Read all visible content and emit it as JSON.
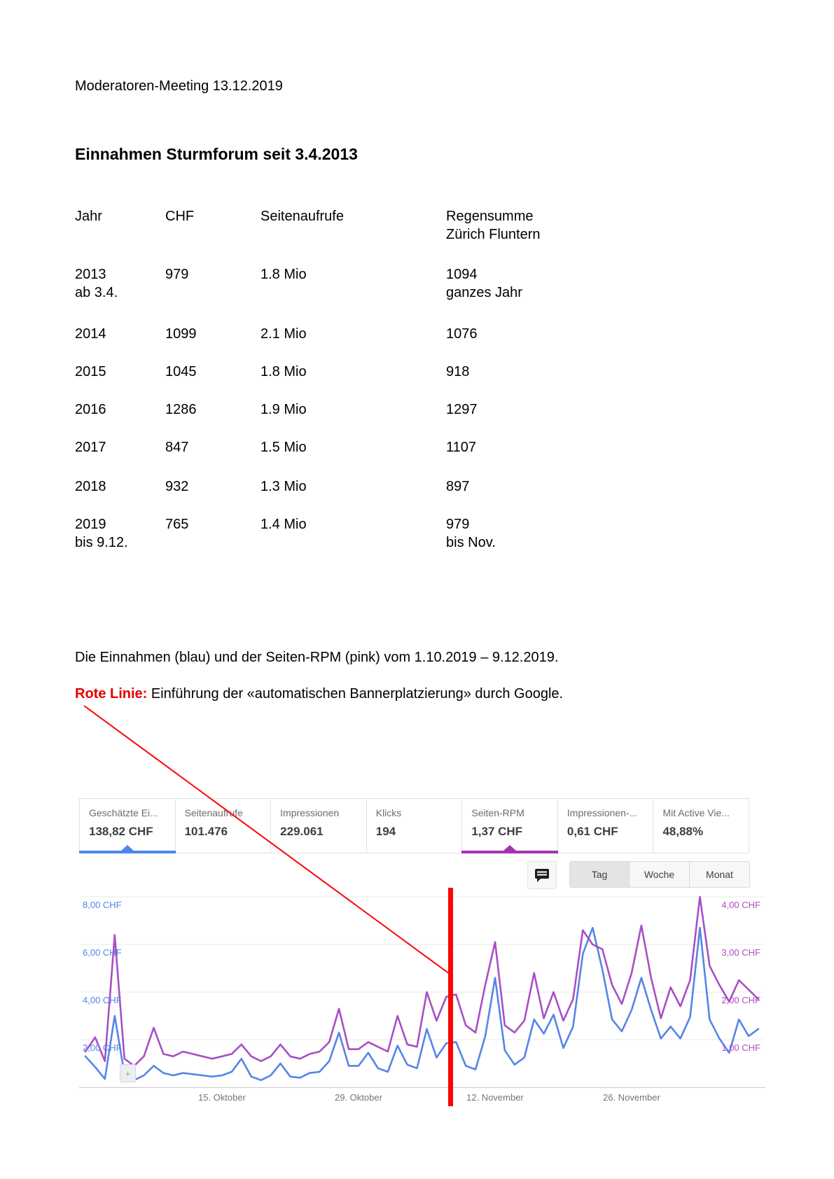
{
  "document": {
    "header": "Moderatoren-Meeting 13.12.2019",
    "title": "Einnahmen Sturmforum seit 3.4.2013",
    "table": {
      "headers": [
        [
          "Jahr"
        ],
        [
          "CHF"
        ],
        [
          "Seitenaufrufe"
        ],
        [
          "Regensumme",
          "Zürich Fluntern"
        ]
      ],
      "rows": [
        {
          "jahr": [
            "2013",
            "ab 3.4."
          ],
          "chf": "979",
          "seitenaufrufe": "1.8 Mio",
          "regensumme": [
            "1094",
            "ganzes Jahr"
          ]
        },
        {
          "jahr": [
            "2014"
          ],
          "chf": "1099",
          "seitenaufrufe": "2.1 Mio",
          "regensumme": [
            "1076"
          ]
        },
        {
          "jahr": [
            "2015"
          ],
          "chf": "1045",
          "seitenaufrufe": "1.8 Mio",
          "regensumme": [
            "918"
          ]
        },
        {
          "jahr": [
            "2016"
          ],
          "chf": "1286",
          "seitenaufrufe": "1.9 Mio",
          "regensumme": [
            "1297"
          ]
        },
        {
          "jahr": [
            "2017"
          ],
          "chf": "847",
          "seitenaufrufe": "1.5 Mio",
          "regensumme": [
            "1107"
          ]
        },
        {
          "jahr": [
            "2018"
          ],
          "chf": "932",
          "seitenaufrufe": "1.3 Mio",
          "regensumme": [
            "897"
          ]
        },
        {
          "jahr": [
            "2019",
            "bis 9.12."
          ],
          "chf": "765",
          "seitenaufrufe": "1.4 Mio",
          "regensumme": [
            "979",
            "bis Nov."
          ]
        }
      ]
    },
    "caption": "Die Einnahmen (blau) und der Seiten-RPM (pink) vom 1.10.2019 – 9.12.2019.",
    "note_label": "Rote Linie:",
    "note_text": " Einführung der «automatischen Bannerplatzierung» durch Google.",
    "annotation_color": "#e60000"
  },
  "adsense": {
    "cards": [
      {
        "label": "Geschätzte Ei...",
        "value": "138,82 CHF",
        "selected": "blue"
      },
      {
        "label": "Seitenaufrufe",
        "value": "101.476",
        "selected": null
      },
      {
        "label": "Impressionen",
        "value": "229.061",
        "selected": null
      },
      {
        "label": "Klicks",
        "value": "194",
        "selected": null
      },
      {
        "label": "Seiten-RPM",
        "value": "1,37 CHF",
        "selected": "purple"
      },
      {
        "label": "Impressionen-...",
        "value": "0,61 CHF",
        "selected": null
      },
      {
        "label": "Mit Active Vie...",
        "value": "48,88%",
        "selected": null
      }
    ],
    "range_buttons": [
      {
        "label": "Tag",
        "active": true
      },
      {
        "label": "Woche",
        "active": false
      },
      {
        "label": "Monat",
        "active": false
      }
    ],
    "comment_icon": "speech-bubble-icon",
    "colors": {
      "blue": "#4e86ec",
      "purple": "#a433b4"
    }
  },
  "chart_data": {
    "type": "line",
    "date_range": "1.10.2019 – 9.12.2019",
    "days": 70,
    "x_tick_labels": [
      "15. Oktober",
      "29. Oktober",
      "12. November",
      "26. November"
    ],
    "x_tick_days": [
      15,
      29,
      43,
      57
    ],
    "grid": true,
    "legend": "none",
    "left_axis": {
      "series": "Geschätzte Einnahmen",
      "tick_labels": [
        "8,00 CHF",
        "6,00 CHF",
        "4,00 CHF",
        "2,00 CHF"
      ],
      "tick_values": [
        8,
        6,
        4,
        2
      ],
      "max": 8,
      "color": "#4e86ec"
    },
    "right_axis": {
      "series": "Seiten-RPM",
      "tick_labels": [
        "4,00 CHF",
        "3,00 CHF",
        "2,00 CHF",
        "1,00 CHF"
      ],
      "tick_values": [
        4,
        3,
        2,
        1
      ],
      "max": 4,
      "color": "#b44bc4"
    },
    "series": [
      {
        "name": "Einnahmen (blau)",
        "axis": "left",
        "color": "#5585e8",
        "values": [
          1.3,
          0.85,
          0.35,
          3.0,
          0.55,
          0.3,
          0.5,
          0.9,
          0.6,
          0.5,
          0.6,
          0.55,
          0.5,
          0.45,
          0.5,
          0.65,
          1.2,
          0.45,
          0.3,
          0.5,
          1.0,
          0.45,
          0.4,
          0.6,
          0.65,
          1.1,
          2.3,
          0.9,
          0.9,
          1.45,
          0.8,
          0.65,
          1.75,
          0.95,
          0.8,
          2.45,
          1.25,
          1.85,
          1.9,
          0.9,
          0.75,
          2.15,
          4.6,
          1.55,
          0.95,
          1.25,
          2.85,
          2.25,
          3.05,
          1.65,
          2.55,
          5.6,
          6.7,
          4.95,
          2.85,
          2.35,
          3.25,
          4.6,
          3.25,
          2.05,
          2.55,
          2.05,
          2.95,
          6.7,
          2.85,
          2.05,
          1.45,
          2.85,
          2.15,
          2.45
        ]
      },
      {
        "name": "Seiten-RPM (pink)",
        "axis": "right",
        "color": "#a84fc4",
        "values": [
          0.75,
          1.05,
          0.55,
          3.2,
          0.6,
          0.45,
          0.65,
          1.25,
          0.7,
          0.65,
          0.75,
          0.7,
          0.65,
          0.6,
          0.65,
          0.7,
          0.9,
          0.65,
          0.55,
          0.65,
          0.9,
          0.65,
          0.6,
          0.7,
          0.75,
          0.95,
          1.65,
          0.8,
          0.8,
          0.95,
          0.85,
          0.75,
          1.5,
          0.9,
          0.85,
          2.0,
          1.4,
          1.9,
          1.95,
          1.3,
          1.15,
          2.15,
          3.05,
          1.3,
          1.15,
          1.4,
          2.4,
          1.45,
          2.0,
          1.4,
          1.85,
          3.3,
          3.0,
          2.9,
          2.15,
          1.75,
          2.4,
          3.4,
          2.3,
          1.45,
          2.1,
          1.7,
          2.25,
          4.0,
          2.55,
          2.15,
          1.8,
          2.25,
          2.05,
          1.85
        ]
      }
    ],
    "red_line_day": 38.5
  }
}
